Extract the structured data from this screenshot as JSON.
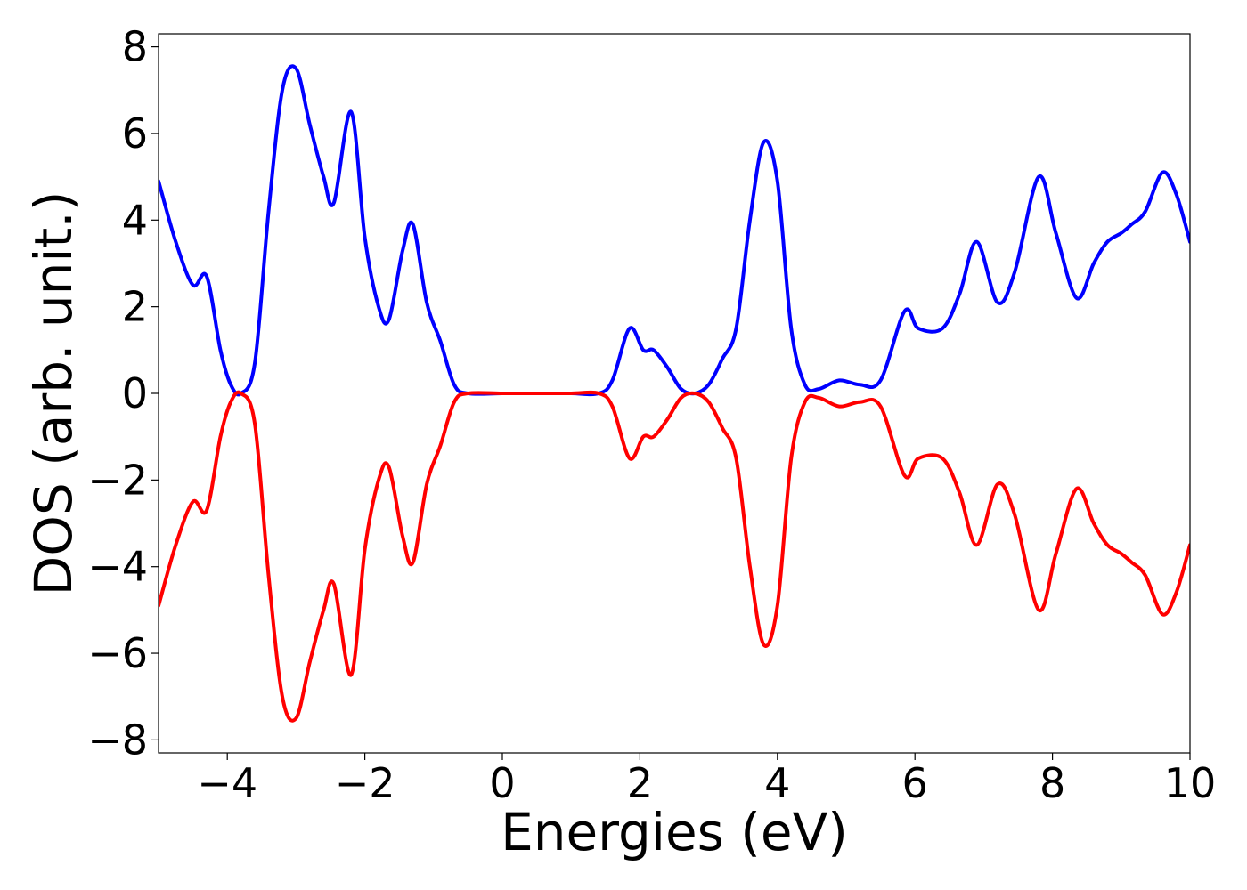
{
  "chart_data": {
    "type": "line",
    "xlabel": "Energies (eV)",
    "ylabel": "DOS (arb. unit.)",
    "xlim": [
      -5,
      10
    ],
    "ylim": [
      -8.3,
      8.3
    ],
    "xticks": [
      -4,
      -2,
      0,
      2,
      4,
      6,
      8,
      10
    ],
    "xtick_labels": [
      "−4",
      "−2",
      "0",
      "2",
      "4",
      "6",
      "8",
      "10"
    ],
    "yticks": [
      -8,
      -6,
      -4,
      -2,
      0,
      2,
      4,
      6,
      8
    ],
    "ytick_labels": [
      "−8",
      "−6",
      "−4",
      "−2",
      "0",
      "2",
      "4",
      "6",
      "8"
    ],
    "grid": false,
    "colors": {
      "spin_up": "#0000ff",
      "spin_down": "#ff0000"
    },
    "x": [
      -5.0,
      -4.75,
      -4.5,
      -4.3,
      -4.1,
      -3.95,
      -3.8,
      -3.6,
      -3.4,
      -3.2,
      -3.0,
      -2.8,
      -2.6,
      -2.45,
      -2.2,
      -2.0,
      -1.8,
      -1.65,
      -1.45,
      -1.3,
      -1.1,
      -0.9,
      -0.7,
      -0.5,
      0.0,
      0.5,
      1.0,
      1.4,
      1.6,
      1.85,
      2.05,
      2.2,
      2.4,
      2.6,
      2.8,
      3.0,
      3.2,
      3.4,
      3.6,
      3.8,
      4.0,
      4.2,
      4.4,
      4.6,
      4.9,
      5.2,
      5.5,
      5.85,
      6.05,
      6.4,
      6.65,
      6.9,
      7.2,
      7.45,
      7.8,
      8.05,
      8.35,
      8.6,
      8.8,
      9.0,
      9.15,
      9.35,
      9.6,
      9.8,
      10.0
    ],
    "series": [
      {
        "values": [
          4.9,
          3.5,
          2.5,
          2.7,
          1.0,
          0.2,
          0.0,
          0.7,
          4.2,
          7.0,
          7.5,
          6.2,
          5.0,
          4.4,
          6.5,
          3.6,
          2.0,
          1.7,
          3.3,
          3.9,
          2.1,
          1.2,
          0.2,
          0.0,
          0.0,
          0.0,
          0.0,
          0.0,
          0.3,
          1.5,
          1.0,
          1.0,
          0.6,
          0.1,
          0.0,
          0.2,
          0.8,
          1.5,
          4.0,
          5.8,
          4.9,
          1.5,
          0.2,
          0.1,
          0.3,
          0.2,
          0.3,
          1.9,
          1.5,
          1.5,
          2.3,
          3.5,
          2.1,
          2.8,
          5.0,
          3.7,
          2.2,
          3.0,
          3.5,
          3.7,
          3.9,
          4.2,
          5.1,
          4.6,
          3.5
        ]
      },
      {
        "values": [
          -4.9,
          -3.5,
          -2.5,
          -2.7,
          -1.0,
          -0.2,
          0.0,
          -0.7,
          -4.2,
          -7.0,
          -7.5,
          -6.2,
          -5.0,
          -4.4,
          -6.5,
          -3.6,
          -2.0,
          -1.7,
          -3.3,
          -3.9,
          -2.1,
          -1.2,
          -0.2,
          0.0,
          0.0,
          0.0,
          0.0,
          0.0,
          -0.3,
          -1.5,
          -1.0,
          -1.0,
          -0.6,
          -0.1,
          0.0,
          -0.2,
          -0.8,
          -1.5,
          -4.0,
          -5.8,
          -4.9,
          -1.5,
          -0.2,
          -0.1,
          -0.3,
          -0.2,
          -0.3,
          -1.9,
          -1.5,
          -1.5,
          -2.3,
          -3.5,
          -2.1,
          -2.8,
          -5.0,
          -3.7,
          -2.2,
          -3.0,
          -3.5,
          -3.7,
          -3.9,
          -4.2,
          -5.1,
          -4.6,
          -3.5
        ]
      }
    ]
  }
}
